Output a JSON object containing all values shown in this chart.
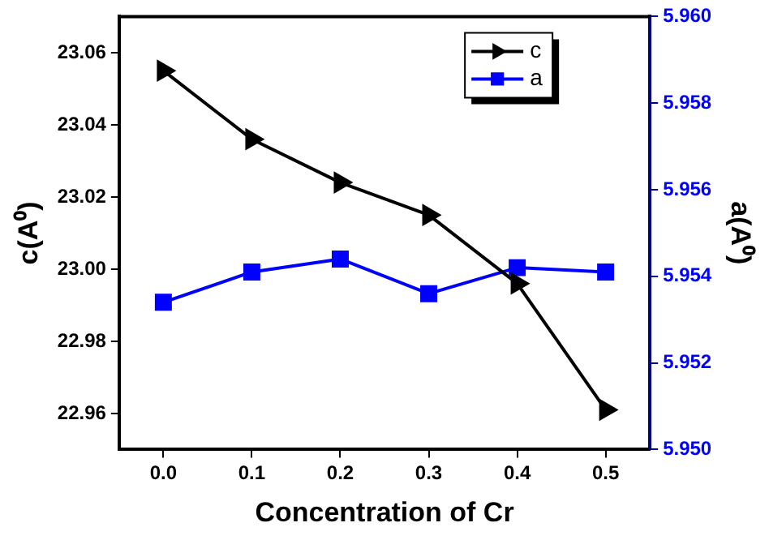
{
  "chart_data": {
    "type": "line",
    "xlabel": "Concentration of Cr",
    "ylabel": "c(A⁰)",
    "y2label": "a(A⁰)",
    "x": [
      0.0,
      0.1,
      0.2,
      0.3,
      0.4,
      0.5
    ],
    "xlim": [
      -0.05,
      0.55
    ],
    "xticks": [
      {
        "value": 0,
        "label": "0.0"
      },
      {
        "value": 0.1,
        "label": "0.1"
      },
      {
        "value": 0.2,
        "label": "0.2"
      },
      {
        "value": 0.3,
        "label": "0.3"
      },
      {
        "value": 0.4,
        "label": "0.4"
      },
      {
        "value": 0.5,
        "label": "0.5"
      }
    ],
    "ylim": [
      22.95,
      23.07
    ],
    "yticks": [
      {
        "value": 22.96,
        "label": "22.96"
      },
      {
        "value": 22.98,
        "label": "22.98"
      },
      {
        "value": 23.0,
        "label": "23.00"
      },
      {
        "value": 23.02,
        "label": "23.02"
      },
      {
        "value": 23.04,
        "label": "23.04"
      },
      {
        "value": 23.06,
        "label": "23.06"
      }
    ],
    "y2lim": [
      5.95,
      5.96
    ],
    "y2ticks": [
      {
        "value": 5.95,
        "label": "5.950"
      },
      {
        "value": 5.952,
        "label": "5.952"
      },
      {
        "value": 5.954,
        "label": "5.954"
      },
      {
        "value": 5.956,
        "label": "5.956"
      },
      {
        "value": 5.958,
        "label": "5.958"
      },
      {
        "value": 5.96,
        "label": "5.960"
      }
    ],
    "series": [
      {
        "name": "c",
        "color": "#000000",
        "marker": "triangle",
        "values": [
          23.055,
          23.036,
          23.024,
          23.015,
          22.996,
          22.961
        ]
      },
      {
        "name": "a",
        "color": "#0000ff",
        "marker": "square",
        "axis": "y2",
        "values": [
          5.9534,
          5.9541,
          5.9544,
          5.9536,
          5.9542,
          5.9541
        ]
      }
    ],
    "legend": "top right",
    "grid": false,
    "line_style": "solid"
  }
}
